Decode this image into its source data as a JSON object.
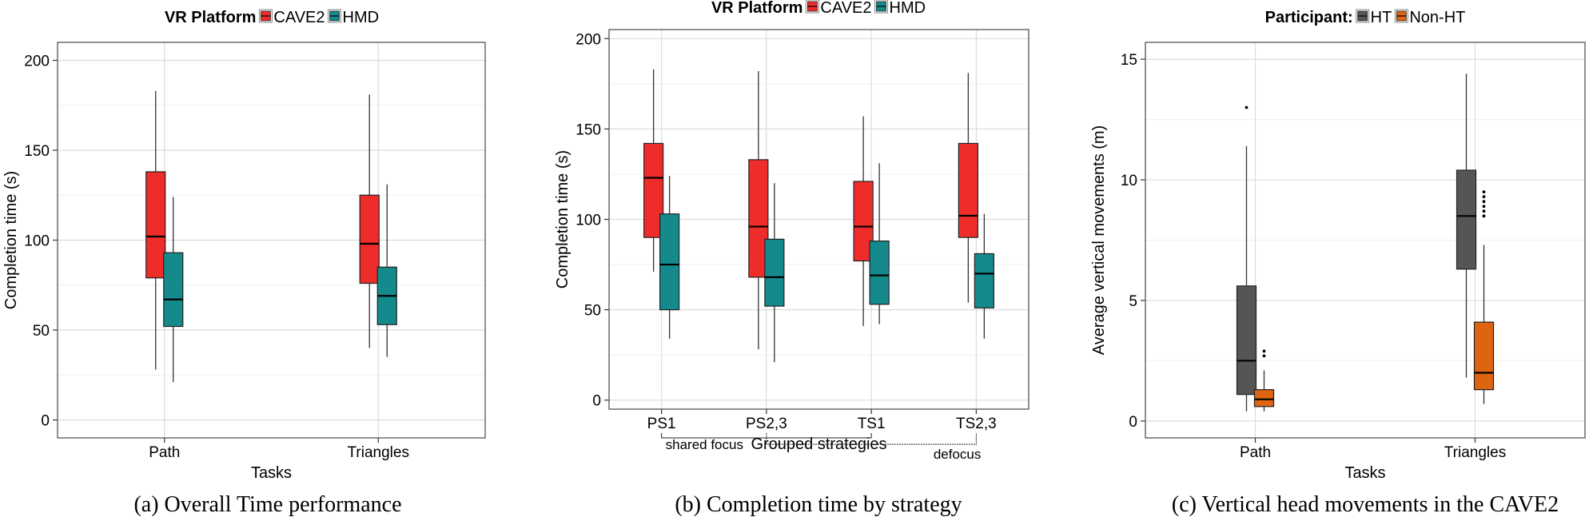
{
  "chart_data": [
    {
      "type": "box",
      "title": "",
      "caption": "(a)  Overall Time performance",
      "xlabel": "Tasks",
      "ylabel": "Completion time (s)",
      "ylim": [
        -10,
        210
      ],
      "yticks": [
        0,
        50,
        100,
        150,
        200
      ],
      "grid": true,
      "legend": {
        "title": "VR Platform",
        "position": "top",
        "entries": [
          "CAVE2",
          "HMD"
        ]
      },
      "categories": [
        "Path",
        "Triangles"
      ],
      "series": [
        {
          "name": "CAVE2",
          "color": "#ee2d2a",
          "boxes": [
            {
              "category": "Path",
              "min": 28,
              "q1": 79,
              "median": 102,
              "q3": 138,
              "max": 183,
              "outliers": []
            },
            {
              "category": "Triangles",
              "min": 40,
              "q1": 76,
              "median": 98,
              "q3": 125,
              "max": 181,
              "outliers": []
            }
          ]
        },
        {
          "name": "HMD",
          "color": "#148a8c",
          "boxes": [
            {
              "category": "Path",
              "min": 21,
              "q1": 52,
              "median": 67,
              "q3": 93,
              "max": 124,
              "outliers": []
            },
            {
              "category": "Triangles",
              "min": 35,
              "q1": 53,
              "median": 69,
              "q3": 85,
              "max": 131,
              "outliers": []
            }
          ]
        }
      ]
    },
    {
      "type": "box",
      "title": "",
      "caption": "(b)  Completion time by strategy",
      "xlabel": "Grouped strategies",
      "ylabel": "Completion time (s)",
      "ylim": [
        -5,
        205
      ],
      "yticks": [
        0,
        50,
        100,
        150,
        200
      ],
      "grid": true,
      "legend": {
        "title": "VR Platform",
        "position": "top",
        "entries": [
          "CAVE2",
          "HMD"
        ]
      },
      "categories": [
        "PS1",
        "PS2,3",
        "TS1",
        "TS2,3"
      ],
      "annotations": [
        "shared focus",
        "defocus"
      ],
      "series": [
        {
          "name": "CAVE2",
          "color": "#ee2d2a",
          "boxes": [
            {
              "category": "PS1",
              "min": 71,
              "q1": 90,
              "median": 123,
              "q3": 142,
              "max": 183,
              "outliers": []
            },
            {
              "category": "PS2,3",
              "min": 28,
              "q1": 68,
              "median": 96,
              "q3": 133,
              "max": 182,
              "outliers": []
            },
            {
              "category": "TS1",
              "min": 41,
              "q1": 77,
              "median": 96,
              "q3": 121,
              "max": 157,
              "outliers": []
            },
            {
              "category": "TS2,3",
              "min": 54,
              "q1": 90,
              "median": 102,
              "q3": 142,
              "max": 181,
              "outliers": []
            }
          ]
        },
        {
          "name": "HMD",
          "color": "#148a8c",
          "boxes": [
            {
              "category": "PS1",
              "min": 34,
              "q1": 50,
              "median": 75,
              "q3": 103,
              "max": 124,
              "outliers": []
            },
            {
              "category": "PS2,3",
              "min": 21,
              "q1": 52,
              "median": 68,
              "q3": 89,
              "max": 120,
              "outliers": []
            },
            {
              "category": "TS1",
              "min": 42,
              "q1": 53,
              "median": 69,
              "q3": 88,
              "max": 131,
              "outliers": []
            },
            {
              "category": "TS2,3",
              "min": 34,
              "q1": 51,
              "median": 70,
              "q3": 81,
              "max": 103,
              "outliers": []
            }
          ]
        }
      ]
    },
    {
      "type": "box",
      "title": "",
      "caption": "(c)  Vertical head movements in the CAVE2",
      "xlabel": "Tasks",
      "ylabel": "Average vertical movements (m)",
      "ylim": [
        -0.7,
        15.7
      ],
      "yticks": [
        0,
        5,
        10,
        15
      ],
      "grid": true,
      "legend": {
        "title": "Participant:",
        "position": "top",
        "entries": [
          "HT",
          "Non-HT"
        ]
      },
      "categories": [
        "Path",
        "Triangles"
      ],
      "series": [
        {
          "name": "HT",
          "color": "#555555",
          "boxes": [
            {
              "category": "Path",
              "min": 0.4,
              "q1": 1.1,
              "median": 2.5,
              "q3": 5.6,
              "max": 11.4,
              "outliers": [
                13.0
              ]
            },
            {
              "category": "Triangles",
              "min": 1.8,
              "q1": 6.3,
              "median": 8.5,
              "q3": 10.4,
              "max": 14.4,
              "outliers": []
            }
          ]
        },
        {
          "name": "Non-HT",
          "color": "#dd6411",
          "boxes": [
            {
              "category": "Path",
              "min": 0.4,
              "q1": 0.6,
              "median": 0.9,
              "q3": 1.3,
              "max": 2.1,
              "outliers": [
                2.7,
                2.9
              ]
            },
            {
              "category": "Triangles",
              "min": 0.7,
              "q1": 1.3,
              "median": 2.0,
              "q3": 4.1,
              "max": 7.3,
              "outliers": [
                8.5,
                8.7,
                8.9,
                9.1,
                9.3,
                9.5
              ]
            }
          ]
        }
      ]
    }
  ]
}
